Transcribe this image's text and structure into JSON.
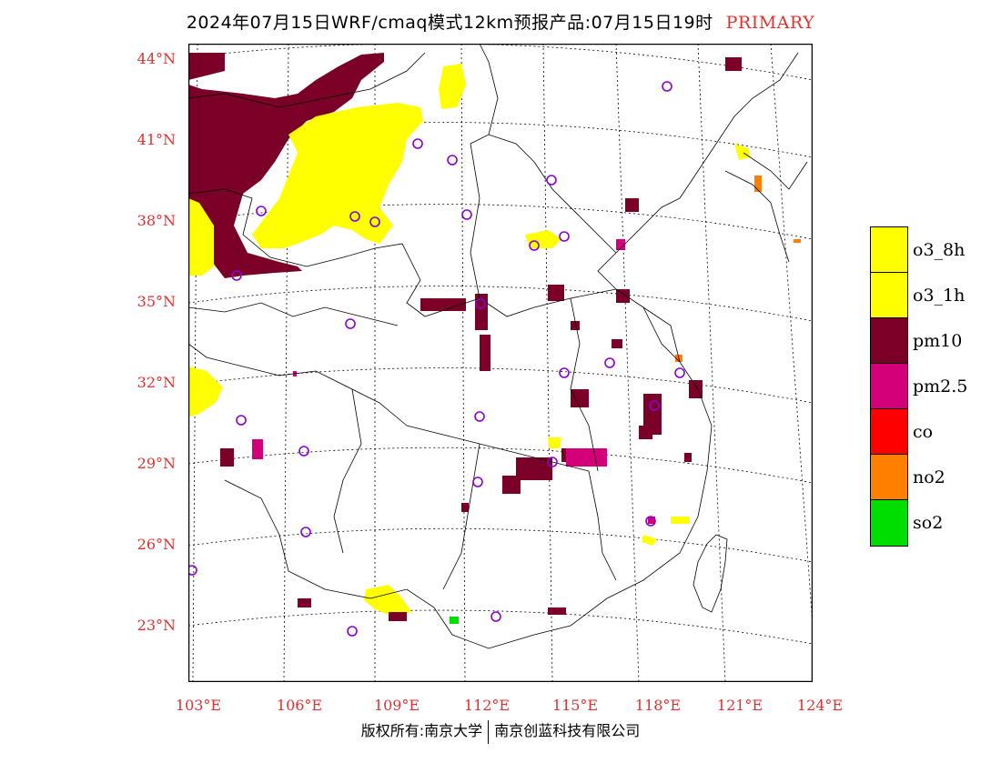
{
  "title": {
    "main": "2024年07月15日WRF/cmaq模式12km预报产品:07月15日19时",
    "tag": "PRIMARY"
  },
  "map": {
    "lat_labels": [
      "44°N",
      "41°N",
      "38°N",
      "35°N",
      "32°N",
      "29°N",
      "26°N",
      "23°N"
    ],
    "lon_labels": [
      "103°E",
      "106°E",
      "109°E",
      "112°E",
      "115°E",
      "118°E",
      "121°E",
      "124°E"
    ],
    "colors": {
      "o3_8h": "#ffff00",
      "o3_1h": "#ffff00",
      "pm10": "#7a0028",
      "pm25": "#d4007a",
      "co": "#ff0000",
      "no2": "#ff7f00",
      "so2": "#00dd00",
      "station": "#8a00d4",
      "axis": "#e23030"
    }
  },
  "legend": {
    "items": [
      {
        "label": "o3_8h",
        "color": "#ffff00"
      },
      {
        "label": "o3_1h",
        "color": "#ffff00"
      },
      {
        "label": "pm10",
        "color": "#7a0028"
      },
      {
        "label": "pm2.5",
        "color": "#d4007a"
      },
      {
        "label": "co",
        "color": "#ff0000"
      },
      {
        "label": "no2",
        "color": "#ff7f00"
      },
      {
        "label": "so2",
        "color": "#00dd00"
      }
    ]
  },
  "footer": {
    "left": "版权所有:南京大学",
    "right": "南京创蓝科技有限公司"
  }
}
